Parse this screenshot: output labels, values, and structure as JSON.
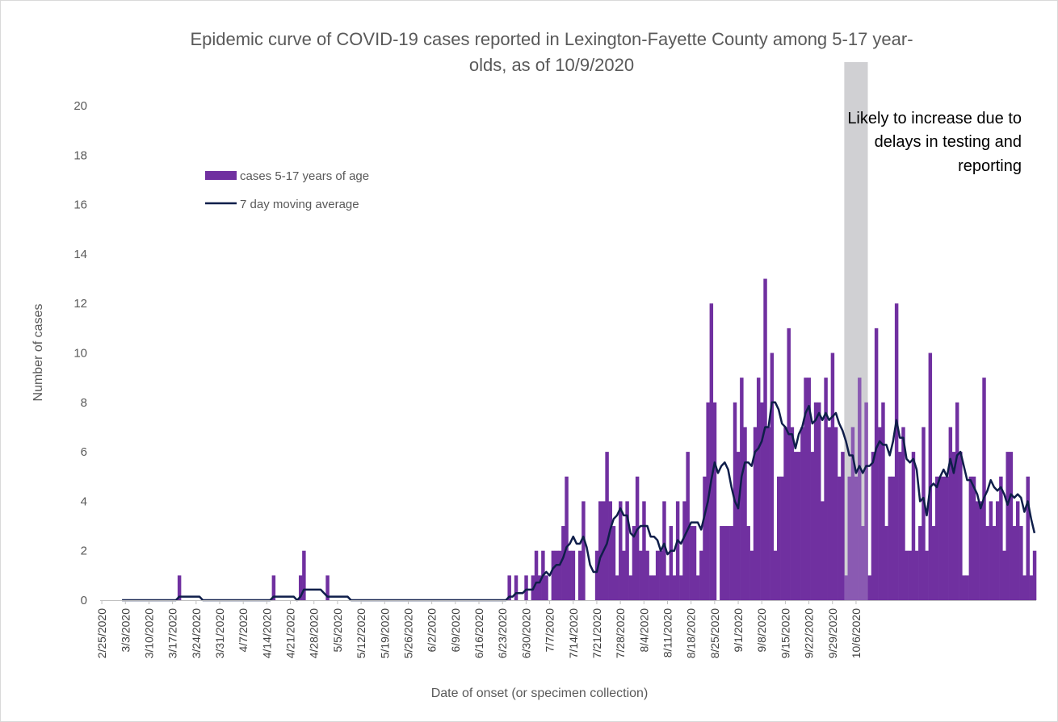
{
  "chart_data": {
    "type": "bar",
    "title_line1": "Epidemic curve of COVID-19 cases reported in Lexington-Fayette County among 5-17 year-",
    "title_line2": "olds, as of 10/9/2020",
    "xlabel": "Date of onset (or specimen collection)",
    "ylabel": "Number of cases",
    "ylim": [
      0,
      20
    ],
    "yticks": [
      0,
      2,
      4,
      6,
      8,
      10,
      12,
      14,
      16,
      18,
      20
    ],
    "grid": false,
    "legend_position": "upper-left",
    "x_start_date": "2/25/2020",
    "x_tick_labels": [
      "2/25/2020",
      "3/3/2020",
      "3/10/2020",
      "3/17/2020",
      "3/24/2020",
      "3/31/2020",
      "4/7/2020",
      "4/14/2020",
      "4/21/2020",
      "4/28/2020",
      "5/5/2020",
      "5/12/2020",
      "5/19/2020",
      "5/26/2020",
      "6/2/2020",
      "6/9/2020",
      "6/16/2020",
      "6/23/2020",
      "6/30/2020",
      "7/7/2020",
      "7/14/2020",
      "7/21/2020",
      "7/28/2020",
      "8/4/2020",
      "8/11/2020",
      "8/18/2020",
      "8/25/2020",
      "9/1/2020",
      "9/8/2020",
      "9/15/2020",
      "9/22/2020",
      "9/29/2020",
      "10/6/2020"
    ],
    "series": [
      {
        "name": "cases 5-17 years of age",
        "kind": "bar",
        "color": "#7030a0",
        "values": [
          0,
          0,
          0,
          0,
          0,
          0,
          0,
          0,
          0,
          0,
          0,
          0,
          0,
          0,
          0,
          0,
          0,
          0,
          0,
          0,
          0,
          0,
          0,
          1,
          0,
          0,
          0,
          0,
          0,
          0,
          0,
          0,
          0,
          0,
          0,
          0,
          0,
          0,
          0,
          0,
          0,
          0,
          0,
          0,
          0,
          0,
          0,
          0,
          0,
          0,
          0,
          1,
          0,
          0,
          0,
          0,
          0,
          0,
          0,
          1,
          2,
          0,
          0,
          0,
          0,
          0,
          0,
          1,
          0,
          0,
          0,
          0,
          0,
          0,
          0,
          0,
          0,
          0,
          0,
          0,
          0,
          0,
          0,
          0,
          0,
          0,
          0,
          0,
          0,
          0,
          0,
          0,
          0,
          0,
          0,
          0,
          0,
          0,
          0,
          0,
          0,
          0,
          0,
          0,
          0,
          0,
          0,
          0,
          0,
          0,
          0,
          0,
          0,
          0,
          0,
          0,
          0,
          0,
          0,
          0,
          0,
          1,
          0,
          1,
          0,
          0,
          1,
          0,
          1,
          2,
          1,
          2,
          1,
          0,
          2,
          2,
          2,
          3,
          5,
          2,
          2,
          0,
          2,
          4,
          0,
          0,
          0,
          2,
          4,
          4,
          6,
          4,
          3,
          1,
          4,
          2,
          4,
          1,
          3,
          5,
          2,
          4,
          2,
          1,
          1,
          2,
          2,
          4,
          1,
          3,
          1,
          4,
          1,
          4,
          6,
          3,
          3,
          1,
          2,
          5,
          8,
          12,
          8,
          0,
          3,
          3,
          3,
          3,
          8,
          6,
          9,
          7,
          3,
          2,
          7,
          9,
          8,
          13,
          7,
          10,
          2,
          5,
          5,
          7,
          11,
          7,
          6,
          6,
          7,
          9,
          9,
          6,
          8,
          8,
          4,
          9,
          7,
          10,
          7,
          5,
          6,
          1,
          5,
          7,
          5,
          9,
          3,
          8,
          1,
          6,
          11,
          7,
          8,
          3,
          5,
          5,
          12,
          6,
          7,
          2,
          2,
          6,
          2,
          3,
          7,
          2,
          10,
          3,
          5,
          5,
          5,
          5,
          7,
          6,
          8,
          6,
          1,
          1,
          5,
          5,
          4,
          4,
          9,
          3,
          4,
          3,
          4,
          5,
          2,
          6,
          6,
          3,
          4,
          3,
          1,
          5,
          1,
          2
        ],
        "note": "one bar per day starting 2/25/2020 through 10/9/2020"
      },
      {
        "name": "7 day moving average",
        "kind": "line",
        "color": "#0f1e4a"
      }
    ],
    "shaded_region": {
      "start_date": "10/3/2020",
      "end_date": "10/9/2020",
      "color": "#d0d0d3",
      "annotation_lines": [
        "Likely to increase due to",
        "delays in testing and",
        "reporting"
      ]
    }
  }
}
